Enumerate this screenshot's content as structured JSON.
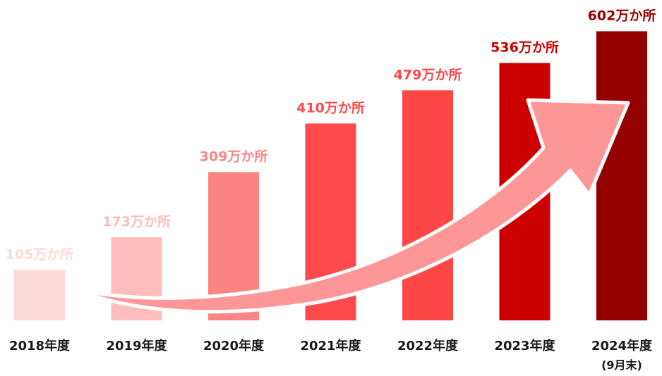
{
  "chart_data": {
    "type": "bar",
    "title": "",
    "xlabel": "",
    "ylabel": "",
    "ylim": [
      0,
      620
    ],
    "grid": false,
    "legend": "none",
    "categories": [
      "2018年度",
      "2019年度",
      "2020年度",
      "2021年度",
      "2022年度",
      "2023年度",
      "2024年度"
    ],
    "category_notes": [
      "",
      "",
      "",
      "",
      "",
      "",
      "(9月末)"
    ],
    "values": [
      105,
      173,
      309,
      410,
      479,
      536,
      602
    ],
    "value_unit": "万か所",
    "bar_colors": [
      "#fddada",
      "#fdbdbd",
      "#fb8585",
      "#fd4a4a",
      "#fd4646",
      "#cc0000",
      "#950000"
    ],
    "label_colors": [
      "#fddada",
      "#fdbdbd",
      "#fb8585",
      "#fd4a4a",
      "#fd4646",
      "#cc0000",
      "#950000"
    ],
    "annotations": [
      {
        "type": "trend-arrow",
        "color": "#fd9797",
        "outline": "#ffffff"
      }
    ]
  }
}
